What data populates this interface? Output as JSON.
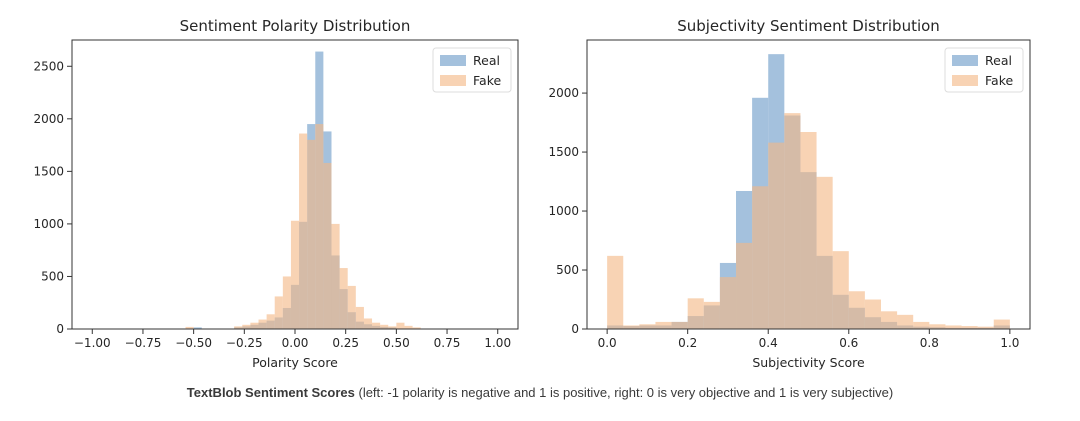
{
  "chart_data": [
    {
      "type": "histogram",
      "title": "Sentiment Polarity Distribution",
      "xlabel": "Polarity Score",
      "ylabel": "",
      "xlim": [
        -1.1,
        1.1
      ],
      "ylim": [
        0,
        2750
      ],
      "xticks": [
        "−1.00",
        "−0.75",
        "−0.50",
        "−0.25",
        "0.00",
        "0.25",
        "0.50",
        "0.75",
        "1.00"
      ],
      "xtick_values": [
        -1.0,
        -0.75,
        -0.5,
        -0.25,
        0.0,
        0.25,
        0.5,
        0.75,
        1.0
      ],
      "yticks": [
        "0",
        "500",
        "1000",
        "1500",
        "2000",
        "2500"
      ],
      "ytick_values": [
        0,
        500,
        1000,
        1500,
        2000,
        2500
      ],
      "grid": false,
      "legend": "top-right",
      "bin_width": 0.04,
      "series": [
        {
          "name": "Real",
          "color": "#7ea7cf",
          "bins": [
            {
              "x": -0.5,
              "y": 15
            },
            {
              "x": -0.3,
              "y": 15
            },
            {
              "x": -0.26,
              "y": 25
            },
            {
              "x": -0.22,
              "y": 40
            },
            {
              "x": -0.18,
              "y": 60
            },
            {
              "x": -0.14,
              "y": 80
            },
            {
              "x": -0.1,
              "y": 110
            },
            {
              "x": -0.06,
              "y": 200
            },
            {
              "x": -0.02,
              "y": 420
            },
            {
              "x": 0.02,
              "y": 1020
            },
            {
              "x": 0.06,
              "y": 1950
            },
            {
              "x": 0.1,
              "y": 2640
            },
            {
              "x": 0.14,
              "y": 1880
            },
            {
              "x": 0.18,
              "y": 700
            },
            {
              "x": 0.22,
              "y": 380
            },
            {
              "x": 0.26,
              "y": 160
            },
            {
              "x": 0.3,
              "y": 70
            },
            {
              "x": 0.34,
              "y": 45
            },
            {
              "x": 0.38,
              "y": 30
            },
            {
              "x": 0.42,
              "y": 20
            },
            {
              "x": 0.46,
              "y": 15
            }
          ]
        },
        {
          "name": "Fake",
          "color": "#f4b886",
          "bins": [
            {
              "x": -0.54,
              "y": 20
            },
            {
              "x": -0.3,
              "y": 25
            },
            {
              "x": -0.26,
              "y": 40
            },
            {
              "x": -0.22,
              "y": 60
            },
            {
              "x": -0.18,
              "y": 90
            },
            {
              "x": -0.14,
              "y": 140
            },
            {
              "x": -0.1,
              "y": 310
            },
            {
              "x": -0.06,
              "y": 500
            },
            {
              "x": -0.02,
              "y": 1030
            },
            {
              "x": 0.02,
              "y": 1860
            },
            {
              "x": 0.06,
              "y": 1800
            },
            {
              "x": 0.1,
              "y": 1950
            },
            {
              "x": 0.14,
              "y": 1580
            },
            {
              "x": 0.18,
              "y": 1000
            },
            {
              "x": 0.22,
              "y": 580
            },
            {
              "x": 0.26,
              "y": 410
            },
            {
              "x": 0.3,
              "y": 210
            },
            {
              "x": 0.34,
              "y": 100
            },
            {
              "x": 0.38,
              "y": 60
            },
            {
              "x": 0.42,
              "y": 40
            },
            {
              "x": 0.46,
              "y": 25
            },
            {
              "x": 0.5,
              "y": 60
            },
            {
              "x": 0.54,
              "y": 30
            },
            {
              "x": 0.58,
              "y": 15
            }
          ]
        }
      ]
    },
    {
      "type": "histogram",
      "title": "Subjectivity Sentiment Distribution",
      "xlabel": "Subjectivity Score",
      "ylabel": "",
      "xlim": [
        -0.05,
        1.05
      ],
      "ylim": [
        0,
        2450
      ],
      "xticks": [
        "0.0",
        "0.2",
        "0.4",
        "0.6",
        "0.8",
        "1.0"
      ],
      "xtick_values": [
        0.0,
        0.2,
        0.4,
        0.6,
        0.8,
        1.0
      ],
      "yticks": [
        "0",
        "500",
        "1000",
        "1500",
        "2000"
      ],
      "ytick_values": [
        0,
        500,
        1000,
        1500,
        2000
      ],
      "grid": false,
      "legend": "top-right",
      "bin_width": 0.04,
      "series": [
        {
          "name": "Real",
          "color": "#7ea7cf",
          "bins": [
            {
              "x": 0.0,
              "y": 30
            },
            {
              "x": 0.04,
              "y": 25
            },
            {
              "x": 0.08,
              "y": 30
            },
            {
              "x": 0.12,
              "y": 30
            },
            {
              "x": 0.16,
              "y": 60
            },
            {
              "x": 0.2,
              "y": 110
            },
            {
              "x": 0.24,
              "y": 200
            },
            {
              "x": 0.28,
              "y": 560
            },
            {
              "x": 0.32,
              "y": 1170
            },
            {
              "x": 0.36,
              "y": 1960
            },
            {
              "x": 0.4,
              "y": 2330
            },
            {
              "x": 0.44,
              "y": 1810
            },
            {
              "x": 0.48,
              "y": 1330
            },
            {
              "x": 0.52,
              "y": 620
            },
            {
              "x": 0.56,
              "y": 290
            },
            {
              "x": 0.6,
              "y": 180
            },
            {
              "x": 0.64,
              "y": 100
            },
            {
              "x": 0.68,
              "y": 60
            },
            {
              "x": 0.72,
              "y": 30
            },
            {
              "x": 0.76,
              "y": 20
            },
            {
              "x": 0.8,
              "y": 15
            },
            {
              "x": 0.84,
              "y": 10
            },
            {
              "x": 0.88,
              "y": 10
            },
            {
              "x": 0.92,
              "y": 10
            },
            {
              "x": 0.96,
              "y": 30
            }
          ]
        },
        {
          "name": "Fake",
          "color": "#f4b886",
          "bins": [
            {
              "x": 0.0,
              "y": 620
            },
            {
              "x": 0.04,
              "y": 30
            },
            {
              "x": 0.08,
              "y": 40
            },
            {
              "x": 0.12,
              "y": 60
            },
            {
              "x": 0.16,
              "y": 60
            },
            {
              "x": 0.2,
              "y": 260
            },
            {
              "x": 0.24,
              "y": 230
            },
            {
              "x": 0.28,
              "y": 440
            },
            {
              "x": 0.32,
              "y": 730
            },
            {
              "x": 0.36,
              "y": 1210
            },
            {
              "x": 0.4,
              "y": 1580
            },
            {
              "x": 0.44,
              "y": 1830
            },
            {
              "x": 0.48,
              "y": 1670
            },
            {
              "x": 0.52,
              "y": 1290
            },
            {
              "x": 0.56,
              "y": 660
            },
            {
              "x": 0.6,
              "y": 320
            },
            {
              "x": 0.64,
              "y": 250
            },
            {
              "x": 0.68,
              "y": 150
            },
            {
              "x": 0.72,
              "y": 120
            },
            {
              "x": 0.76,
              "y": 60
            },
            {
              "x": 0.8,
              "y": 40
            },
            {
              "x": 0.84,
              "y": 30
            },
            {
              "x": 0.88,
              "y": 25
            },
            {
              "x": 0.92,
              "y": 20
            },
            {
              "x": 0.96,
              "y": 80
            }
          ]
        }
      ]
    }
  ],
  "caption": {
    "bold": "TextBlob Sentiment Scores",
    "rest": " (left: -1 polarity is negative and 1 is positive, right: 0 is very objective and 1 is very subjective)"
  }
}
